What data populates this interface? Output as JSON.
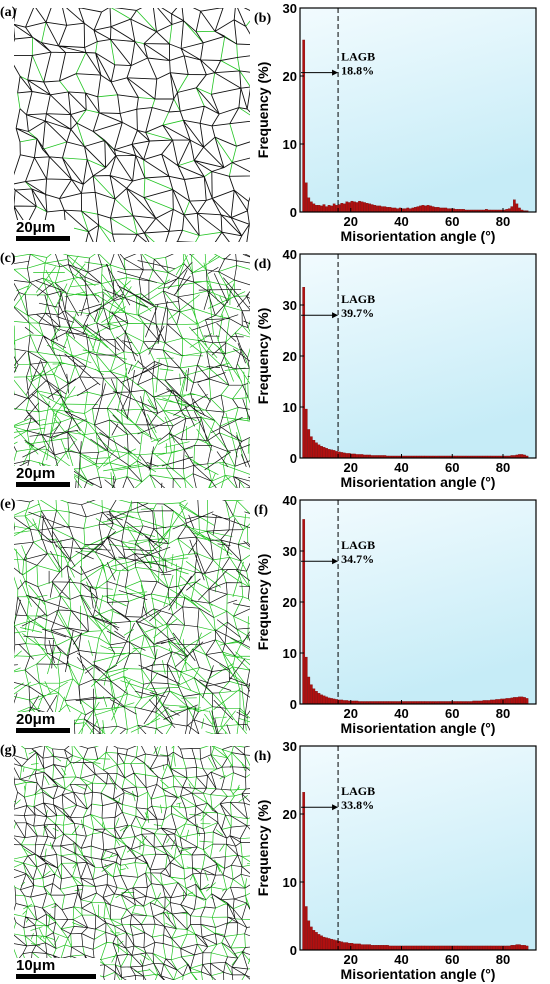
{
  "figure": {
    "panels": [
      {
        "map_label": "(a)",
        "chart_label": "(b)",
        "scale": "20μm",
        "scale_bar_fraction": 0.23,
        "lagb_label": "LAGB",
        "lagb_value": "18.8%",
        "density": "coarse"
      },
      {
        "map_label": "(c)",
        "chart_label": "(d)",
        "scale": "20μm",
        "scale_bar_fraction": 0.23,
        "lagb_label": "LAGB",
        "lagb_value": "39.7%",
        "density": "dense"
      },
      {
        "map_label": "(e)",
        "chart_label": "(f)",
        "scale": "20μm",
        "scale_bar_fraction": 0.23,
        "lagb_label": "LAGB",
        "lagb_value": "34.7%",
        "density": "dense"
      },
      {
        "map_label": "(g)",
        "chart_label": "(h)",
        "scale": "10μm",
        "scale_bar_fraction": 0.34,
        "lagb_label": "LAGB",
        "lagb_value": "33.8%",
        "density": "fine"
      }
    ],
    "colors": {
      "bar": "#b01010",
      "bar_edge": "#700000",
      "plot_bg_top": "#f2fbfe",
      "plot_bg_bottom": "#c6ecf7",
      "lagb_boundary": "#22c422",
      "hagb_boundary": "#111111"
    }
  },
  "chart_data": [
    {
      "type": "bar",
      "panel": "(b)",
      "xlabel": "Misorientation angle (°)",
      "ylabel": "Frequency (%)",
      "xlim": [
        0,
        93
      ],
      "ylim": [
        0,
        30
      ],
      "xticks": [
        20,
        40,
        60,
        80
      ],
      "yticks": [
        0,
        10,
        20,
        30
      ],
      "bin_width": 1,
      "x_start": 2,
      "cutoff_line": 15,
      "annotation": {
        "label": "LAGB",
        "value": "18.8%",
        "arrow_y": 20.5
      },
      "values": [
        25.3,
        4.3,
        2.1,
        1.5,
        1.2,
        1.0,
        1.0,
        0.9,
        1.1,
        0.8,
        1.0,
        0.9,
        1.2,
        1.0,
        1.1,
        1.3,
        1.2,
        1.5,
        1.4,
        1.6,
        1.5,
        1.4,
        1.6,
        1.5,
        1.4,
        1.3,
        1.2,
        1.1,
        1.0,
        0.9,
        0.9,
        0.8,
        0.8,
        0.7,
        0.7,
        0.6,
        0.6,
        0.5,
        0.6,
        0.5,
        0.5,
        0.6,
        0.5,
        0.6,
        0.7,
        0.8,
        0.9,
        1.0,
        0.9,
        1.0,
        0.9,
        0.8,
        0.7,
        0.7,
        0.6,
        0.6,
        0.6,
        0.5,
        0.5,
        0.5,
        0.4,
        0.4,
        0.4,
        0.4,
        0.3,
        0.3,
        0.3,
        0.3,
        0.3,
        0.3,
        0.3,
        0.3,
        0.4,
        0.3,
        0.3,
        0.3,
        0.3,
        0.3,
        0.3,
        0.3,
        0.4,
        0.5,
        0.8,
        1.8,
        1.2,
        0.6,
        0.3,
        0.2,
        0.2
      ]
    },
    {
      "type": "bar",
      "panel": "(d)",
      "xlabel": "Misorientation angle (°)",
      "ylabel": "Frequency (%)",
      "xlim": [
        0,
        93
      ],
      "ylim": [
        0,
        40
      ],
      "xticks": [
        20,
        40,
        60,
        80
      ],
      "yticks": [
        0,
        10,
        20,
        30,
        40
      ],
      "bin_width": 1,
      "x_start": 2,
      "cutoff_line": 15,
      "annotation": {
        "label": "LAGB",
        "value": "39.7%",
        "arrow_y": 28
      },
      "values": [
        33.5,
        9.6,
        5.6,
        4.2,
        3.5,
        3.0,
        2.6,
        2.3,
        2.1,
        1.9,
        1.7,
        1.6,
        1.5,
        1.3,
        1.2,
        1.1,
        1.0,
        0.9,
        0.9,
        0.8,
        0.8,
        0.7,
        0.7,
        0.7,
        0.6,
        0.6,
        0.6,
        0.5,
        0.5,
        0.5,
        0.5,
        0.5,
        0.5,
        0.4,
        0.4,
        0.4,
        0.4,
        0.4,
        0.4,
        0.4,
        0.4,
        0.4,
        0.4,
        0.4,
        0.4,
        0.4,
        0.4,
        0.4,
        0.4,
        0.4,
        0.4,
        0.4,
        0.4,
        0.4,
        0.4,
        0.4,
        0.4,
        0.4,
        0.4,
        0.4,
        0.4,
        0.4,
        0.4,
        0.4,
        0.4,
        0.4,
        0.4,
        0.4,
        0.4,
        0.4,
        0.4,
        0.4,
        0.4,
        0.4,
        0.4,
        0.4,
        0.4,
        0.4,
        0.4,
        0.4,
        0.4,
        0.4,
        0.5,
        0.5,
        0.6,
        0.7,
        0.7,
        0.6,
        0.4
      ]
    },
    {
      "type": "bar",
      "panel": "(f)",
      "xlabel": "Misorientation angle (°)",
      "ylabel": "Frequency (%)",
      "xlim": [
        0,
        93
      ],
      "ylim": [
        0,
        40
      ],
      "xticks": [
        20,
        40,
        60,
        80
      ],
      "yticks": [
        0,
        10,
        20,
        30,
        40
      ],
      "bin_width": 1,
      "x_start": 2,
      "cutoff_line": 15,
      "annotation": {
        "label": "LAGB",
        "value": "34.7%",
        "arrow_y": 28
      },
      "values": [
        36.2,
        9.2,
        5.3,
        3.8,
        3.0,
        2.5,
        2.1,
        1.8,
        1.6,
        1.4,
        1.2,
        1.1,
        1.0,
        0.9,
        0.8,
        0.8,
        0.7,
        0.7,
        0.6,
        0.6,
        0.6,
        0.6,
        0.5,
        0.5,
        0.5,
        0.5,
        0.5,
        0.5,
        0.5,
        0.5,
        0.5,
        0.5,
        0.5,
        0.5,
        0.5,
        0.5,
        0.5,
        0.5,
        0.5,
        0.5,
        0.5,
        0.5,
        0.5,
        0.5,
        0.5,
        0.5,
        0.5,
        0.5,
        0.5,
        0.5,
        0.5,
        0.5,
        0.5,
        0.5,
        0.5,
        0.5,
        0.5,
        0.5,
        0.5,
        0.5,
        0.5,
        0.5,
        0.5,
        0.5,
        0.5,
        0.5,
        0.5,
        0.6,
        0.6,
        0.6,
        0.6,
        0.7,
        0.7,
        0.7,
        0.8,
        0.8,
        0.9,
        0.9,
        1.0,
        1.0,
        1.1,
        1.1,
        1.2,
        1.3,
        1.3,
        1.4,
        1.4,
        1.3,
        1.1
      ]
    },
    {
      "type": "bar",
      "panel": "(h)",
      "xlabel": "Misorientation angle (°)",
      "ylabel": "Frequency (%)",
      "xlim": [
        0,
        93
      ],
      "ylim": [
        0,
        30
      ],
      "xticks": [
        20,
        40,
        60,
        80
      ],
      "yticks": [
        0,
        10,
        20,
        30
      ],
      "bin_width": 1,
      "x_start": 2,
      "cutoff_line": 15,
      "annotation": {
        "label": "LAGB",
        "value": "33.8%",
        "arrow_y": 21
      },
      "values": [
        23.2,
        6.4,
        4.3,
        3.4,
        2.9,
        2.6,
        2.3,
        2.1,
        1.9,
        1.8,
        1.7,
        1.6,
        1.5,
        1.4,
        1.3,
        1.2,
        1.1,
        1.1,
        1.0,
        1.0,
        0.9,
        0.9,
        0.9,
        0.8,
        0.8,
        0.8,
        0.8,
        0.7,
        0.7,
        0.7,
        0.7,
        0.7,
        0.7,
        0.7,
        0.6,
        0.6,
        0.6,
        0.6,
        0.6,
        0.6,
        0.6,
        0.6,
        0.6,
        0.6,
        0.6,
        0.6,
        0.6,
        0.6,
        0.6,
        0.6,
        0.6,
        0.6,
        0.6,
        0.6,
        0.6,
        0.6,
        0.6,
        0.6,
        0.6,
        0.6,
        0.6,
        0.6,
        0.6,
        0.6,
        0.6,
        0.6,
        0.6,
        0.6,
        0.6,
        0.6,
        0.6,
        0.6,
        0.6,
        0.6,
        0.6,
        0.6,
        0.6,
        0.6,
        0.6,
        0.6,
        0.6,
        0.6,
        0.7,
        0.7,
        0.8,
        0.8,
        0.7,
        0.7,
        0.6
      ]
    }
  ]
}
